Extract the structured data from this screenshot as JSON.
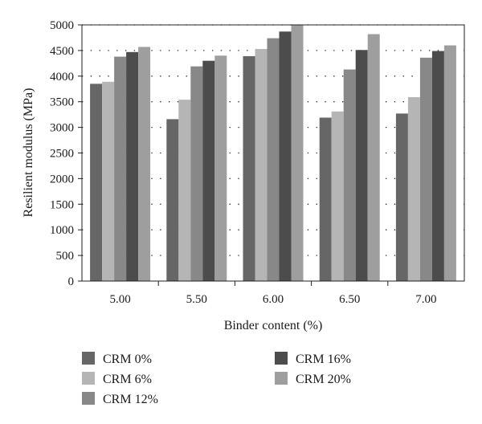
{
  "chart_data": {
    "type": "bar",
    "categories": [
      "5.00",
      "5.50",
      "6.00",
      "6.50",
      "7.00"
    ],
    "series": [
      {
        "name": "CRM 0%",
        "values": [
          3850,
          3160,
          4390,
          3190,
          3270
        ],
        "color": "#666666"
      },
      {
        "name": "CRM 6%",
        "values": [
          3890,
          3540,
          4530,
          3310,
          3590
        ],
        "color": "#b5b5b5"
      },
      {
        "name": "CRM 12%",
        "values": [
          4380,
          4190,
          4740,
          4130,
          4360
        ],
        "color": "#888888"
      },
      {
        "name": "CRM 16%",
        "values": [
          4470,
          4300,
          4870,
          4510,
          4490
        ],
        "color": "#4c4c4c"
      },
      {
        "name": "CRM 20%",
        "values": [
          4570,
          4400,
          5000,
          4820,
          4600
        ],
        "color": "#9e9e9e"
      }
    ],
    "xlabel": "Binder content (%)",
    "ylabel": "Resilient modulus (MPa)",
    "ylim": [
      0,
      5000
    ],
    "yticks": [
      "0",
      "500",
      "1000",
      "1500",
      "2000",
      "2500",
      "3000",
      "3500",
      "4000",
      "4500",
      "5000"
    ],
    "grid": "dotted horizontal",
    "legend_position": "bottom"
  }
}
